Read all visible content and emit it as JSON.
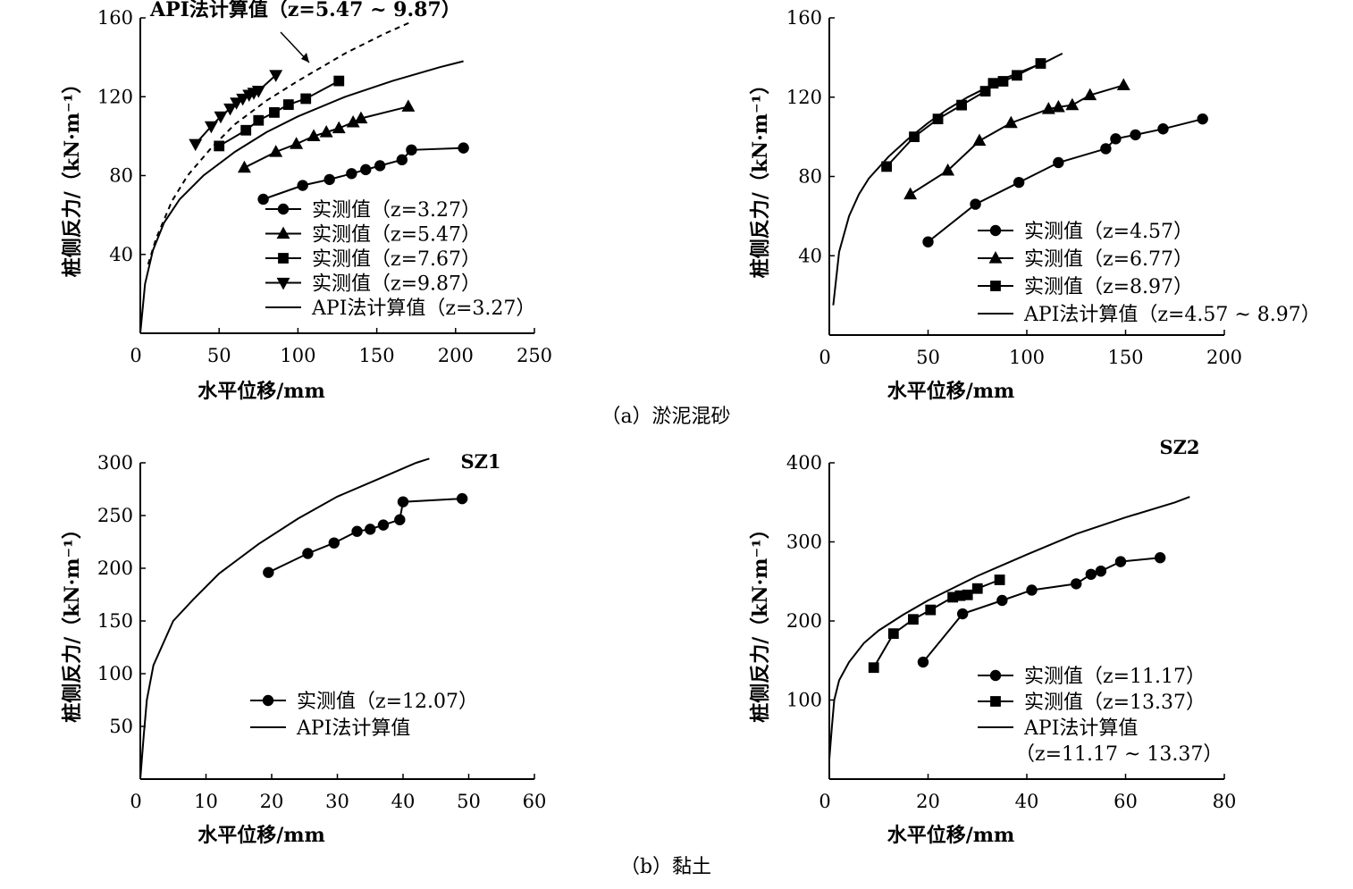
{
  "captions": {
    "a": "（a）淤泥混砂",
    "b": "（b）黏土"
  },
  "chart_data": [
    {
      "type": "line",
      "xlabel": "水平位移/mm",
      "ylabel": "桩侧反力/（kN·m⁻¹）",
      "xlim": [
        0,
        250
      ],
      "ylim": [
        0,
        160
      ],
      "xticks": [
        0,
        50,
        100,
        150,
        200,
        250
      ],
      "yticks": [
        40,
        80,
        120,
        160
      ],
      "annotation": "API法计算值（z=5.47 ~ 9.87）",
      "series": [
        {
          "name": "实测值（z=3.27）",
          "marker": "circle",
          "x": [
            78,
            103,
            120,
            134,
            143,
            152,
            166,
            172,
            205
          ],
          "y": [
            68,
            75,
            78,
            81,
            83,
            85,
            88,
            93,
            94
          ]
        },
        {
          "name": "实测值（z=5.47）",
          "marker": "triangle-up",
          "x": [
            66,
            86,
            99,
            110,
            118,
            126,
            135,
            140,
            170
          ],
          "y": [
            84,
            92,
            96,
            100,
            102,
            104,
            107,
            109,
            115
          ]
        },
        {
          "name": "实测值（z=7.67）",
          "marker": "square",
          "x": [
            50,
            67,
            75,
            85,
            94,
            105,
            126
          ],
          "y": [
            95,
            103,
            108,
            112,
            116,
            119,
            128
          ]
        },
        {
          "name": "实测值（z=9.87）",
          "marker": "triangle-down",
          "x": [
            35,
            45,
            51,
            57,
            61,
            65,
            69,
            72,
            75,
            86
          ],
          "y": [
            96,
            105,
            110,
            114,
            117,
            119,
            121,
            122,
            123,
            131
          ]
        },
        {
          "name": "API法计算值（z=3.27）",
          "marker": "none",
          "style": "solid",
          "x": [
            0,
            3,
            8,
            15,
            25,
            40,
            60,
            80,
            100,
            130,
            160,
            190,
            205
          ],
          "y": [
            0,
            25,
            42,
            56,
            68,
            80,
            92,
            102,
            110,
            120,
            128,
            135,
            138
          ]
        },
        {
          "marker": "none",
          "style": "dashed",
          "x": [
            5,
            10,
            20,
            30,
            45,
            60,
            80,
            100,
            130,
            155,
            172
          ],
          "y": [
            35,
            48,
            67,
            80,
            94,
            106,
            118,
            128,
            142,
            152,
            158
          ]
        }
      ]
    },
    {
      "type": "line",
      "xlabel": "水平位移/mm",
      "ylabel": "桩侧反力/（kN·m⁻¹）",
      "xlim": [
        0,
        200
      ],
      "ylim": [
        0,
        160
      ],
      "xticks": [
        0,
        50,
        100,
        150,
        200
      ],
      "yticks": [
        40,
        80,
        120,
        160
      ],
      "series": [
        {
          "name": "实测值（z=4.57）",
          "marker": "circle",
          "x": [
            50,
            74,
            96,
            116,
            140,
            145,
            155,
            169,
            189
          ],
          "y": [
            47,
            66,
            77,
            87,
            94,
            99,
            101,
            104,
            109
          ]
        },
        {
          "name": "实测值（z=6.77）",
          "marker": "triangle-up",
          "x": [
            41,
            60,
            76,
            92,
            111,
            116,
            123,
            132,
            149
          ],
          "y": [
            71,
            83,
            98,
            107,
            114,
            115,
            116,
            121,
            126
          ]
        },
        {
          "name": "实测值（z=8.97）",
          "marker": "square",
          "x": [
            29,
            43,
            55,
            67,
            79,
            83,
            88,
            95,
            107
          ],
          "y": [
            85,
            100,
            109,
            116,
            123,
            127,
            128,
            131,
            137
          ]
        },
        {
          "name": "API法计算值（z=4.57 ~ 8.97）",
          "marker": "none",
          "style": "solid",
          "x": [
            2,
            5,
            10,
            15,
            20,
            30,
            40,
            50,
            60,
            70,
            80,
            90,
            100,
            110,
            118
          ],
          "y": [
            15,
            42,
            60,
            71,
            79,
            90,
            99,
            107,
            114,
            120,
            125,
            130,
            134,
            138,
            142
          ]
        }
      ]
    },
    {
      "type": "line",
      "title": "SZ1",
      "xlabel": "水平位移/mm",
      "ylabel": "桩侧反力/（kN·m⁻¹）",
      "xlim": [
        0,
        60
      ],
      "ylim": [
        0,
        300
      ],
      "xticks": [
        0,
        10,
        20,
        30,
        40,
        50,
        60
      ],
      "yticks": [
        50,
        100,
        150,
        200,
        250,
        300
      ],
      "series": [
        {
          "name": "实测值（z=12.07）",
          "marker": "circle",
          "x": [
            19.5,
            25.5,
            29.5,
            33,
            35,
            37,
            39.5,
            40,
            49
          ],
          "y": [
            196,
            214,
            224,
            235,
            237,
            241,
            246,
            263,
            266
          ]
        },
        {
          "name": "API法计算值",
          "marker": "none",
          "style": "solid",
          "x": [
            0,
            0.5,
            1,
            2,
            5,
            8,
            12,
            18,
            24,
            30,
            36,
            42,
            44
          ],
          "y": [
            0,
            40,
            75,
            108,
            150,
            170,
            195,
            223,
            247,
            268,
            284,
            300,
            304
          ]
        }
      ]
    },
    {
      "type": "line",
      "title": "SZ2",
      "xlabel": "水平位移/mm",
      "ylabel": "桩侧反力/（kN·m⁻¹）",
      "xlim": [
        0,
        80
      ],
      "ylim": [
        0,
        400
      ],
      "xticks": [
        0,
        20,
        40,
        60,
        80
      ],
      "yticks": [
        100,
        200,
        300,
        400
      ],
      "series": [
        {
          "name": "实测值（z=11.17）",
          "marker": "circle",
          "x": [
            19,
            27,
            35,
            41,
            50,
            53,
            55,
            59,
            67
          ],
          "y": [
            148,
            209,
            226,
            239,
            247,
            259,
            263,
            275,
            280
          ]
        },
        {
          "name": "实测值（z=13.37）",
          "marker": "square",
          "x": [
            9,
            13,
            17,
            20.5,
            25,
            26.5,
            28,
            30,
            34.5
          ],
          "y": [
            141,
            184,
            202,
            214,
            230,
            232,
            233,
            241,
            252
          ]
        },
        {
          "name": "API法计算值",
          "name2": "（z=11.17 ~ 13.37）",
          "marker": "none",
          "style": "solid",
          "x": [
            0,
            0.5,
            1,
            2,
            4,
            7,
            10,
            15,
            20,
            30,
            40,
            50,
            60,
            70,
            73
          ],
          "y": [
            25,
            65,
            100,
            125,
            148,
            172,
            188,
            208,
            226,
            257,
            284,
            310,
            331,
            350,
            357
          ]
        }
      ]
    }
  ]
}
